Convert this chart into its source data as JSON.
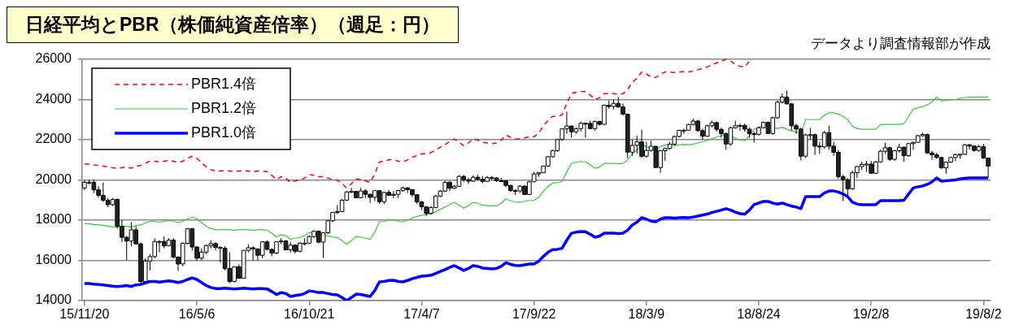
{
  "chart_data": {
    "type": "candlestick",
    "title": "日経平均とPBR（株価純資産倍率）（週足：円）",
    "annotations": [
      "データより調査情報部が作成"
    ],
    "categories": [
      "15/11/20",
      null,
      null,
      null,
      null,
      null,
      null,
      null,
      null,
      null,
      null,
      null,
      null,
      null,
      null,
      null,
      null,
      null,
      null,
      null,
      null,
      null,
      null,
      null,
      "16/5/6",
      null,
      null,
      null,
      null,
      null,
      null,
      null,
      null,
      null,
      null,
      null,
      null,
      null,
      null,
      null,
      null,
      null,
      null,
      null,
      null,
      null,
      null,
      null,
      "16/10/21",
      null,
      null,
      null,
      null,
      null,
      null,
      null,
      null,
      null,
      null,
      null,
      null,
      null,
      null,
      null,
      null,
      null,
      null,
      null,
      null,
      null,
      null,
      null,
      "17/4/7",
      null,
      null,
      null,
      null,
      null,
      null,
      null,
      null,
      null,
      null,
      null,
      null,
      null,
      null,
      null,
      null,
      null,
      null,
      null,
      null,
      null,
      null,
      null,
      "17/9/22",
      null,
      null,
      null,
      null,
      null,
      null,
      null,
      null,
      null,
      null,
      null,
      null,
      null,
      null,
      null,
      null,
      null,
      null,
      null,
      null,
      null,
      null,
      null,
      "18/3/9",
      null,
      null,
      null,
      null,
      null,
      null,
      null,
      null,
      null,
      null,
      null,
      null,
      null,
      null,
      null,
      null,
      null,
      null,
      null,
      null,
      null,
      null,
      null,
      "18/8/24",
      null,
      null,
      null,
      null,
      null,
      null,
      null,
      null,
      null,
      null,
      null,
      null,
      null,
      null,
      null,
      null,
      null,
      null,
      null,
      null,
      null,
      null,
      null,
      "19/2/8",
      null,
      null,
      null,
      null,
      null,
      null,
      null,
      null,
      null,
      null,
      null,
      null,
      null,
      null,
      null,
      null,
      null,
      null,
      null,
      null,
      null,
      null,
      null,
      "19/8/2",
      null
    ],
    "ohlc": [
      [
        19600,
        19990,
        19500,
        19880
      ],
      [
        19880,
        20010,
        19780,
        19884
      ],
      [
        19884,
        20012,
        19350,
        19504
      ],
      [
        19504,
        19700,
        19120,
        19230
      ],
      [
        19230,
        19870,
        18910,
        18986
      ],
      [
        18986,
        19110,
        18650,
        18769
      ],
      [
        18769,
        19100,
        18700,
        19033
      ],
      [
        19033,
        19070,
        17600,
        17697
      ],
      [
        17697,
        18000,
        16900,
        17147
      ],
      [
        17147,
        17200,
        16017,
        16958
      ],
      [
        16958,
        17900,
        16700,
        17518
      ],
      [
        17518,
        17700,
        16800,
        16819
      ],
      [
        16819,
        16900,
        14865,
        14952
      ],
      [
        14952,
        16100,
        14900,
        15967
      ],
      [
        15967,
        16300,
        15500,
        16188
      ],
      [
        16188,
        17100,
        16100,
        16938
      ],
      [
        16938,
        17000,
        16400,
        16938
      ],
      [
        16938,
        17200,
        16600,
        16724
      ],
      [
        16724,
        17100,
        16700,
        17002
      ],
      [
        17002,
        17100,
        16100,
        16164
      ],
      [
        16164,
        16200,
        15470,
        15821
      ],
      [
        15821,
        16900,
        15700,
        16848
      ],
      [
        16848,
        17600,
        16800,
        17572
      ],
      [
        17572,
        17600,
        16500,
        16666
      ],
      [
        16666,
        16700,
        15975,
        16106
      ],
      [
        16106,
        16600,
        16000,
        16412
      ],
      [
        16412,
        16800,
        16300,
        16736
      ],
      [
        16736,
        17000,
        16600,
        16834
      ],
      [
        16834,
        16900,
        16500,
        16642
      ],
      [
        16642,
        16700,
        15900,
        16601
      ],
      [
        16601,
        16700,
        15500,
        15599
      ],
      [
        15599,
        16390,
        14864,
        14952
      ],
      [
        14952,
        15700,
        14900,
        15682
      ],
      [
        15682,
        15800,
        15100,
        15106
      ],
      [
        15106,
        16500,
        15100,
        16497
      ],
      [
        16497,
        16800,
        16400,
        16627
      ],
      [
        16627,
        16700,
        16000,
        16569
      ],
      [
        16569,
        16600,
        16000,
        16254
      ],
      [
        16254,
        16950,
        16100,
        16919
      ],
      [
        16919,
        17000,
        16500,
        16545
      ],
      [
        16545,
        16600,
        16200,
        16360
      ],
      [
        16360,
        16950,
        16300,
        16925
      ],
      [
        16925,
        17100,
        16800,
        16965
      ],
      [
        16965,
        17000,
        16500,
        16519
      ],
      [
        16519,
        16900,
        16400,
        16754
      ],
      [
        16754,
        16800,
        16350,
        16449
      ],
      [
        16449,
        16900,
        16400,
        16860
      ],
      [
        16860,
        17100,
        16750,
        16856
      ],
      [
        16856,
        17250,
        16800,
        17184
      ],
      [
        17184,
        17500,
        17100,
        17446
      ],
      [
        17446,
        17500,
        16850,
        16905
      ],
      [
        16905,
        17400,
        16111,
        17374
      ],
      [
        17374,
        18000,
        17300,
        17967
      ],
      [
        17967,
        18400,
        17900,
        18381
      ],
      [
        18381,
        18750,
        18300,
        18426
      ],
      [
        18426,
        19050,
        18400,
        18996
      ],
      [
        18996,
        19450,
        18950,
        19401
      ],
      [
        19401,
        19600,
        19350,
        19427
      ],
      [
        19427,
        19450,
        19100,
        19114
      ],
      [
        19114,
        19600,
        19100,
        19454
      ],
      [
        19454,
        19550,
        19100,
        19287
      ],
      [
        19287,
        19300,
        18850,
        19137
      ],
      [
        19137,
        19500,
        18950,
        19467
      ],
      [
        19467,
        19500,
        18800,
        18918
      ],
      [
        18918,
        19400,
        18800,
        19378
      ],
      [
        19378,
        19500,
        19200,
        19234
      ],
      [
        19234,
        19450,
        19100,
        19283
      ],
      [
        19283,
        19500,
        19100,
        19469
      ],
      [
        19469,
        19670,
        19400,
        19604
      ],
      [
        19604,
        19650,
        19350,
        19521
      ],
      [
        19521,
        19550,
        19150,
        19262
      ],
      [
        19262,
        19300,
        18800,
        18909
      ],
      [
        18909,
        18950,
        18500,
        18664
      ],
      [
        18664,
        18700,
        18220,
        18335
      ],
      [
        18335,
        18700,
        18300,
        18620
      ],
      [
        18620,
        19250,
        18600,
        19197
      ],
      [
        19197,
        19500,
        19150,
        19445
      ],
      [
        19445,
        19950,
        19400,
        19883
      ],
      [
        19883,
        19950,
        19450,
        19590
      ],
      [
        19590,
        19750,
        19550,
        19686
      ],
      [
        19686,
        20240,
        19650,
        20177
      ],
      [
        20177,
        20250,
        19900,
        20013
      ],
      [
        20013,
        20100,
        19800,
        19943
      ],
      [
        19943,
        20230,
        19900,
        20132
      ],
      [
        20132,
        20250,
        19950,
        20033
      ],
      [
        20033,
        20200,
        19850,
        19929
      ],
      [
        19929,
        20200,
        19900,
        20118
      ],
      [
        20118,
        20200,
        20000,
        20099
      ],
      [
        20099,
        20150,
        19900,
        19959
      ],
      [
        19959,
        20100,
        19900,
        19952
      ],
      [
        19952,
        19980,
        19650,
        19729
      ],
      [
        19729,
        19750,
        19400,
        19470
      ],
      [
        19470,
        19550,
        19250,
        19452
      ],
      [
        19452,
        19750,
        19350,
        19691
      ],
      [
        19691,
        19750,
        19250,
        19274
      ],
      [
        19274,
        19950,
        19250,
        19909
      ],
      [
        19909,
        20400,
        19900,
        20296
      ],
      [
        20296,
        20400,
        20150,
        20356
      ],
      [
        20356,
        20700,
        20350,
        20690
      ],
      [
        20690,
        21200,
        20650,
        21155
      ],
      [
        21155,
        21500,
        21100,
        21457
      ],
      [
        21457,
        22050,
        21400,
        22008
      ],
      [
        22008,
        22550,
        21950,
        22539
      ],
      [
        22539,
        23400,
        22300,
        22681
      ],
      [
        22681,
        22700,
        22100,
        22396
      ],
      [
        22396,
        22600,
        22300,
        22550
      ],
      [
        22550,
        22900,
        22400,
        22819
      ],
      [
        22819,
        22850,
        22100,
        22811
      ],
      [
        22811,
        22950,
        22550,
        22553
      ],
      [
        22553,
        22950,
        22450,
        22902
      ],
      [
        22902,
        22950,
        22700,
        22765
      ],
      [
        22765,
        23750,
        22750,
        23714
      ],
      [
        23714,
        23950,
        23550,
        23653
      ],
      [
        23653,
        24000,
        23500,
        23808
      ],
      [
        23808,
        24130,
        23600,
        23631
      ],
      [
        23631,
        23800,
        23200,
        23274
      ],
      [
        23274,
        23300,
        21078,
        21383
      ],
      [
        21383,
        22000,
        21200,
        21720
      ],
      [
        21720,
        22200,
        21300,
        21892
      ],
      [
        21892,
        22500,
        21100,
        21182
      ],
      [
        21182,
        21900,
        21100,
        21469
      ],
      [
        21469,
        21950,
        21400,
        21676
      ],
      [
        21676,
        21700,
        20617,
        20618
      ],
      [
        20618,
        21500,
        20350,
        21454
      ],
      [
        21454,
        21600,
        20950,
        21568
      ],
      [
        21568,
        21900,
        21500,
        21779
      ],
      [
        21779,
        22200,
        21700,
        22162
      ],
      [
        22162,
        22500,
        22100,
        22467
      ],
      [
        22467,
        22550,
        22300,
        22472
      ],
      [
        22472,
        22800,
        22450,
        22758
      ],
      [
        22758,
        23050,
        22700,
        22930
      ],
      [
        22930,
        23000,
        22400,
        22451
      ],
      [
        22451,
        22550,
        22000,
        22171
      ],
      [
        22171,
        22750,
        22150,
        22694
      ],
      [
        22694,
        22950,
        22600,
        22851
      ],
      [
        22851,
        22900,
        22400,
        22516
      ],
      [
        22516,
        22600,
        22100,
        22305
      ],
      [
        22305,
        22350,
        21500,
        21788
      ],
      [
        21788,
        22650,
        21700,
        22597
      ],
      [
        22597,
        22950,
        22550,
        22698
      ],
      [
        22698,
        22800,
        22450,
        22712
      ],
      [
        22712,
        22800,
        22400,
        22525
      ],
      [
        22525,
        22600,
        22100,
        22298
      ],
      [
        22298,
        22400,
        21850,
        22270
      ],
      [
        22270,
        22650,
        22200,
        22601
      ],
      [
        22601,
        22900,
        22550,
        22865
      ],
      [
        22865,
        22900,
        22300,
        22307
      ],
      [
        22307,
        23150,
        22250,
        23094
      ],
      [
        23094,
        23950,
        23050,
        23869
      ],
      [
        23869,
        24300,
        23800,
        24120
      ],
      [
        24120,
        24450,
        23750,
        23784
      ],
      [
        23784,
        23800,
        22450,
        22694
      ],
      [
        22694,
        22800,
        22300,
        22532
      ],
      [
        22532,
        22600,
        20971,
        21184
      ],
      [
        21184,
        22300,
        21100,
        22243
      ],
      [
        22243,
        22600,
        22000,
        22250
      ],
      [
        22250,
        22300,
        21250,
        21680
      ],
      [
        21680,
        21900,
        21300,
        21646
      ],
      [
        21646,
        22450,
        21550,
        22351
      ],
      [
        22351,
        22700,
        21500,
        21679
      ],
      [
        21679,
        21900,
        21200,
        21374
      ],
      [
        21374,
        21500,
        20050,
        20166
      ],
      [
        20166,
        20250,
        18948,
        20015
      ],
      [
        20015,
        20100,
        19241,
        19561
      ],
      [
        19561,
        20450,
        19500,
        20359
      ],
      [
        20359,
        20700,
        20100,
        20666
      ],
      [
        20666,
        20900,
        20500,
        20774
      ],
      [
        20774,
        20950,
        20400,
        20788
      ],
      [
        20788,
        20950,
        20300,
        20333
      ],
      [
        20333,
        20950,
        20300,
        20900
      ],
      [
        20900,
        21500,
        20850,
        21426
      ],
      [
        21426,
        21850,
        21300,
        21602
      ],
      [
        21602,
        21650,
        20950,
        21025
      ],
      [
        21025,
        21500,
        20950,
        21451
      ],
      [
        21451,
        21800,
        21350,
        21627
      ],
      [
        21627,
        21650,
        20900,
        21205
      ],
      [
        21205,
        21850,
        21150,
        21807
      ],
      [
        21807,
        21900,
        21500,
        21870
      ],
      [
        21870,
        22250,
        21850,
        22200
      ],
      [
        22200,
        22350,
        22150,
        22258
      ],
      [
        22258,
        22300,
        21300,
        21344
      ],
      [
        21344,
        21450,
        21000,
        21250
      ],
      [
        21250,
        21350,
        21050,
        21117
      ],
      [
        21117,
        21150,
        20550,
        20601
      ],
      [
        20601,
        20900,
        20300,
        20884
      ],
      [
        20884,
        21150,
        20850,
        21116
      ],
      [
        21116,
        21300,
        20950,
        21258
      ],
      [
        21258,
        21300,
        21050,
        21275
      ],
      [
        21275,
        21800,
        21250,
        21746
      ],
      [
        21746,
        21800,
        21500,
        21685
      ],
      [
        21685,
        21700,
        21400,
        21466
      ],
      [
        21466,
        21750,
        21400,
        21658
      ],
      [
        21658,
        21800,
        21050,
        21087
      ],
      [
        21087,
        21100,
        20110,
        20684
      ]
    ],
    "series": [
      {
        "name": "PBR1.4倍",
        "type": "line",
        "color": "#ff0000",
        "line_style": "dashed",
        "values": [
          20790,
          20790,
          20750,
          20720,
          20690,
          20650,
          20610,
          20580,
          20610,
          20650,
          20580,
          20690,
          20720,
          20830,
          20930,
          20930,
          20890,
          20930,
          20970,
          20930,
          20860,
          20930,
          21070,
          21180,
          21070,
          20860,
          20650,
          20510,
          20440,
          20440,
          20470,
          20440,
          20410,
          20440,
          20470,
          20440,
          20410,
          20440,
          20440,
          20410,
          20230,
          20020,
          20160,
          20090,
          19880,
          19950,
          19990,
          20090,
          20270,
          20230,
          20160,
          20160,
          20090,
          20020,
          19990,
          19810,
          19600,
          19810,
          20050,
          20020,
          19950,
          19880,
          20300,
          20900,
          20930,
          21000,
          21010,
          20930,
          20900,
          21000,
          21130,
          21210,
          21290,
          21320,
          21360,
          21490,
          21630,
          21760,
          21910,
          22040,
          21870,
          21700,
          21840,
          22040,
          21980,
          21870,
          21840,
          21810,
          21840,
          21980,
          22230,
          22120,
          22050,
          22040,
          22090,
          22150,
          22150,
          22330,
          22680,
          22960,
          23160,
          23170,
          23240,
          23800,
          24290,
          24360,
          24400,
          24390,
          24220,
          24010,
          24080,
          24290,
          24290,
          24290,
          24260,
          24290,
          24500,
          24860,
          25060,
          25370,
          25270,
          25130,
          25090,
          25270,
          25370,
          25370,
          25340,
          25370,
          25380,
          25370,
          25410,
          25480,
          25550,
          25620,
          25730,
          25820,
          25900,
          26000,
          25900,
          25760,
          25650,
          25620,
          25900,
          null,
          null,
          null,
          null,
          null,
          null,
          null,
          null,
          null,
          null,
          null,
          null,
          null,
          null,
          null,
          null,
          null,
          null,
          null,
          null,
          null,
          null,
          null,
          null,
          null,
          null,
          null,
          null,
          null,
          null,
          null,
          null,
          null,
          null,
          null,
          null,
          null,
          null,
          null,
          null,
          null,
          null,
          null,
          null,
          null,
          null,
          null,
          null,
          null,
          null,
          null
        ]
      },
      {
        "name": "PBR1.2倍",
        "type": "line",
        "color": "#33cc33",
        "line_style": "solid",
        "values": [
          17820,
          17820,
          17780,
          17760,
          17740,
          17700,
          17660,
          17640,
          17660,
          17700,
          17640,
          17740,
          17760,
          17860,
          17940,
          17940,
          17900,
          17940,
          17980,
          17940,
          17880,
          17940,
          18060,
          18160,
          18060,
          17880,
          17700,
          17580,
          17520,
          17520,
          17540,
          17520,
          17500,
          17520,
          17540,
          17520,
          17500,
          17520,
          17520,
          17500,
          17340,
          17160,
          17280,
          17220,
          17040,
          17100,
          17140,
          17220,
          17380,
          17340,
          17280,
          17280,
          17220,
          17160,
          17140,
          16980,
          16800,
          16980,
          17180,
          17160,
          17100,
          17040,
          17400,
          17920,
          17940,
          18000,
          18010,
          17940,
          17920,
          18000,
          18110,
          18180,
          18250,
          18280,
          18310,
          18420,
          18540,
          18650,
          18780,
          18890,
          18740,
          18600,
          18720,
          18890,
          18840,
          18740,
          18720,
          18700,
          18720,
          18840,
          19060,
          18960,
          18900,
          18890,
          18940,
          18980,
          18980,
          19140,
          19440,
          19680,
          19850,
          19860,
          19920,
          20400,
          20820,
          20880,
          20920,
          20900,
          20760,
          20580,
          20640,
          20820,
          20820,
          20820,
          20800,
          20820,
          21000,
          21310,
          21480,
          21740,
          21660,
          21540,
          21500,
          21660,
          21740,
          21740,
          21720,
          21740,
          21760,
          21740,
          21780,
          21840,
          21900,
          21960,
          22060,
          22130,
          22200,
          22280,
          22200,
          22080,
          21980,
          21960,
          22200,
          22520,
          22620,
          22720,
          22720,
          22620,
          22560,
          22620,
          22520,
          22440,
          22380,
          22280,
          23000,
          23000,
          23000,
          23000,
          23220,
          23340,
          23340,
          23280,
          23160,
          23000,
          22670,
          22560,
          22520,
          22520,
          22520,
          22520,
          22760,
          22760,
          22760,
          22760,
          22760,
          22790,
          23160,
          23520,
          23590,
          23640,
          23740,
          23880,
          24120,
          23930,
          23950,
          23980,
          24000,
          24060,
          24100,
          24120,
          24120,
          24120,
          24120,
          24120
        ]
      },
      {
        "name": "PBR1.0倍",
        "type": "line",
        "color": "#0000ff",
        "line_style": "solid",
        "values": [
          14850,
          14850,
          14820,
          14800,
          14780,
          14750,
          14720,
          14700,
          14720,
          14750,
          14700,
          14780,
          14800,
          14880,
          14950,
          14950,
          14920,
          14950,
          14980,
          14950,
          14900,
          14950,
          15050,
          15130,
          15050,
          14900,
          14750,
          14650,
          14600,
          14600,
          14620,
          14600,
          14580,
          14600,
          14620,
          14600,
          14580,
          14600,
          14600,
          14580,
          14450,
          14300,
          14400,
          14350,
          14200,
          14250,
          14280,
          14350,
          14480,
          14450,
          14400,
          14400,
          14350,
          14300,
          14280,
          14150,
          14000,
          14150,
          14320,
          14300,
          14250,
          14200,
          14500,
          14930,
          14950,
          15000,
          15010,
          14950,
          14930,
          15000,
          15090,
          15150,
          15210,
          15230,
          15260,
          15350,
          15450,
          15540,
          15650,
          15740,
          15620,
          15500,
          15600,
          15740,
          15700,
          15620,
          15600,
          15580,
          15600,
          15700,
          15880,
          15800,
          15750,
          15740,
          15780,
          15820,
          15820,
          15950,
          16200,
          16400,
          16540,
          16550,
          16600,
          17000,
          17350,
          17400,
          17430,
          17420,
          17300,
          17150,
          17200,
          17350,
          17350,
          17350,
          17330,
          17350,
          17500,
          17760,
          17900,
          18120,
          18050,
          17950,
          17920,
          18050,
          18120,
          18120,
          18100,
          18120,
          18130,
          18120,
          18150,
          18200,
          18250,
          18300,
          18380,
          18440,
          18500,
          18570,
          18500,
          18400,
          18320,
          18300,
          18500,
          18770,
          18850,
          18930,
          18930,
          18850,
          18800,
          18850,
          18770,
          18700,
          18650,
          18570,
          19170,
          19170,
          19170,
          19170,
          19350,
          19450,
          19450,
          19400,
          19300,
          19170,
          18890,
          18800,
          18770,
          18770,
          18770,
          18770,
          18970,
          18970,
          18970,
          18970,
          18970,
          18990,
          19300,
          19600,
          19660,
          19700,
          19780,
          19900,
          20100,
          19940,
          19960,
          19980,
          20000,
          20050,
          20080,
          20100,
          20100,
          20100,
          20100,
          20100
        ]
      }
    ],
    "ylim": [
      14000,
      26000
    ],
    "yticks": [
      14000,
      16000,
      18000,
      20000,
      22000,
      24000,
      26000
    ],
    "grid": "y",
    "legend": "top left"
  }
}
